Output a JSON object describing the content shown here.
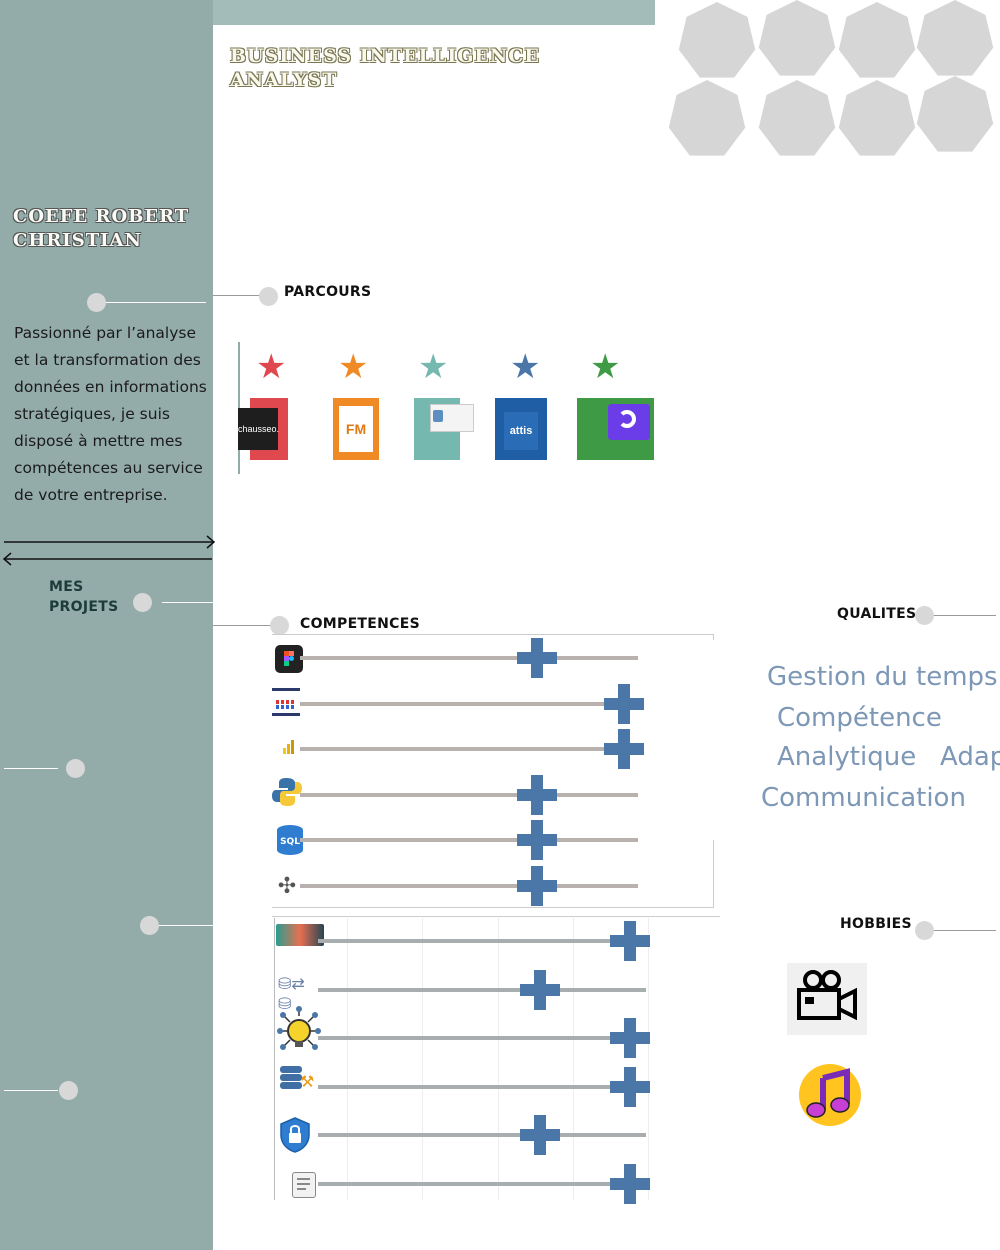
{
  "header": {
    "job_title": "BUSINESS INTELLIGENCE ANALYST"
  },
  "profile": {
    "name": "COEFE ROBERT CHRISTIAN",
    "bio": "Passionné  par l’analyse et la transformation des données en informations stratégiques, je suis disposé à mettre mes compétences au service de votre entreprise."
  },
  "sections": {
    "parcours": "PARCOURS",
    "projets": "MES PROJETS",
    "competences": "COMPETENCES",
    "qualites": "QUALITES",
    "hobbies": "HOBBIES"
  },
  "parcours": {
    "entries": [
      {
        "star_color": "#e04850",
        "logo_text": "chausseo.",
        "logo_bg": "#e04850"
      },
      {
        "star_color": "#f08a24",
        "logo_text": "FM",
        "logo_bg": "#f08a24"
      },
      {
        "star_color": "#74b8b0",
        "logo_text": "",
        "logo_bg": "#74b8b0"
      },
      {
        "star_color": "#4b77a8",
        "logo_text": "attis",
        "logo_bg": "#1f5da4"
      },
      {
        "star_color": "#3e9a44",
        "logo_text": "",
        "logo_bg": "#3e9a44"
      }
    ]
  },
  "competences": {
    "tools": [
      {
        "icon": "figma-icon",
        "level": 0.73
      },
      {
        "icon": "talend-icon",
        "level": 1.0
      },
      {
        "icon": "power-bi-icon",
        "level": 1.0
      },
      {
        "icon": "python-icon",
        "level": 0.73
      },
      {
        "icon": "sql-icon",
        "level": 0.73
      },
      {
        "icon": "tableau-icon",
        "level": 0.73
      }
    ],
    "skills": [
      {
        "icon": "data-visualization-icon",
        "level": 1.0
      },
      {
        "icon": "data-integration-icon",
        "level": 0.71
      },
      {
        "icon": "innovation-icon",
        "level": 1.0
      },
      {
        "icon": "data-mining-icon",
        "level": 1.0
      },
      {
        "icon": "data-security-icon",
        "level": 0.71
      },
      {
        "icon": "data-processing-icon",
        "level": 1.0
      }
    ]
  },
  "qualites": {
    "items": [
      "Gestion du temps",
      "Compétence",
      "Analytique",
      "Adap",
      "Communication"
    ]
  },
  "hobbies": {
    "items": [
      {
        "icon": "movie-camera-icon"
      },
      {
        "icon": "music-note-icon"
      }
    ]
  },
  "colors": {
    "sidebar": "#93acaa",
    "accent_blue": "#4b77a8",
    "quality_text": "#7d97b6"
  }
}
